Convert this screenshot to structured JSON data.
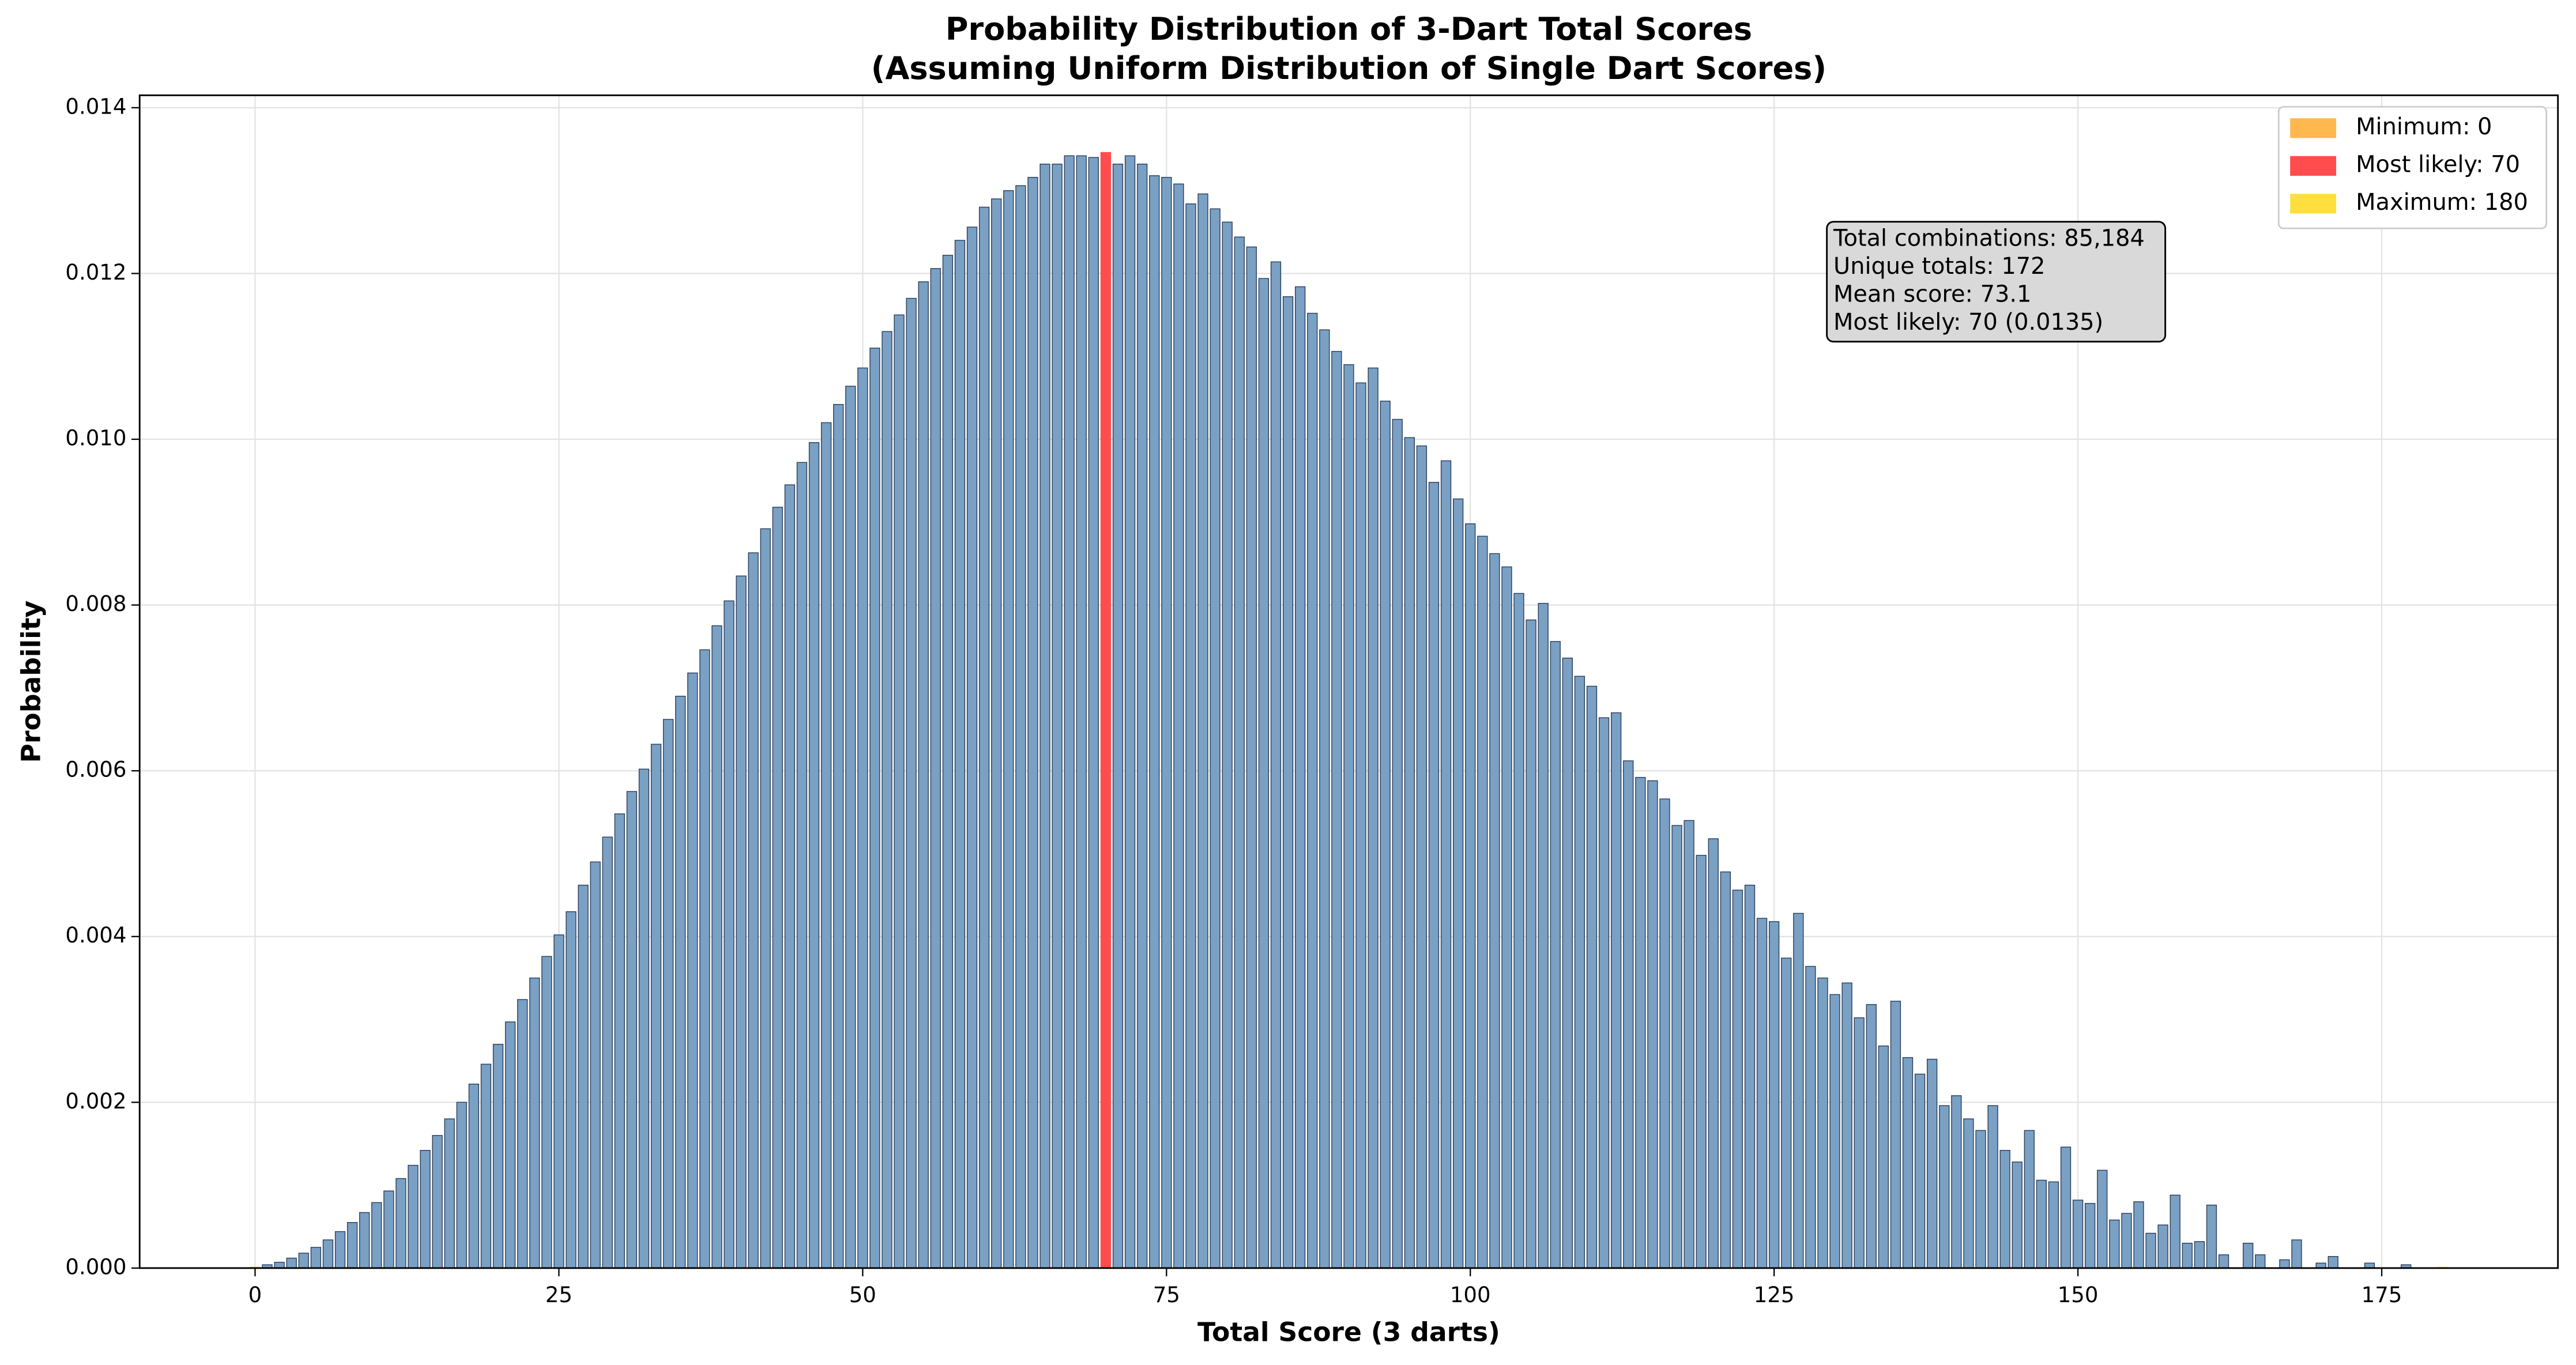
{
  "chart_data": {
    "type": "bar",
    "title": [
      "Probability Distribution of 3-Dart Total Scores",
      "(Assuming Uniform Distribution of Single Dart Scores)"
    ],
    "x_label": "Total Score (3 darts)",
    "y_label": "Probability",
    "color": "#7aa0c4",
    "edge_color": "#2a3f5a",
    "grid": true,
    "legend_position": "upper-right",
    "xlim": [
      -9.5,
      189.5
    ],
    "ylim": [
      0,
      0.01415
    ],
    "xticks": [
      0,
      25,
      50,
      75,
      100,
      125,
      150,
      175
    ],
    "yticks": [
      {
        "value": 0,
        "label": "0.000"
      },
      {
        "value": 0.002,
        "label": "0.002"
      },
      {
        "value": 0.004,
        "label": "0.004"
      },
      {
        "value": 0.006,
        "label": "0.006"
      },
      {
        "value": 0.008,
        "label": "0.008"
      },
      {
        "value": 0.01,
        "label": "0.010"
      },
      {
        "value": 0.012,
        "label": "0.012"
      },
      {
        "value": 0.014,
        "label": "0.014"
      }
    ],
    "highlights": [
      {
        "label": "Minimum: 0",
        "color": "#ffb84d",
        "x": 0
      },
      {
        "label": "Most likely: 70",
        "color": "#ff4d4d",
        "x": 70
      },
      {
        "label": "Maximum: 180",
        "color": "#ffdf3d",
        "x": 180
      }
    ],
    "annotation": [
      "Total combinations: 85,184",
      "Unique totals: 172",
      "Mean score: 73.1",
      "Most likely: 70 (0.0135)"
    ],
    "x": [
      0,
      1,
      2,
      3,
      4,
      5,
      6,
      7,
      8,
      9,
      10,
      11,
      12,
      13,
      14,
      15,
      16,
      17,
      18,
      19,
      20,
      21,
      22,
      23,
      24,
      25,
      26,
      27,
      28,
      29,
      30,
      31,
      32,
      33,
      34,
      35,
      36,
      37,
      38,
      39,
      40,
      41,
      42,
      43,
      44,
      45,
      46,
      47,
      48,
      49,
      50,
      51,
      52,
      53,
      54,
      55,
      56,
      57,
      58,
      59,
      60,
      61,
      62,
      63,
      64,
      65,
      66,
      67,
      68,
      69,
      70,
      71,
      72,
      73,
      74,
      75,
      76,
      77,
      78,
      79,
      80,
      81,
      82,
      83,
      84,
      85,
      86,
      87,
      88,
      89,
      90,
      91,
      92,
      93,
      94,
      95,
      96,
      97,
      98,
      99,
      100,
      101,
      102,
      103,
      104,
      105,
      106,
      107,
      108,
      109,
      110,
      111,
      112,
      113,
      114,
      115,
      116,
      117,
      118,
      119,
      120,
      121,
      122,
      123,
      124,
      125,
      126,
      127,
      128,
      129,
      130,
      131,
      132,
      133,
      134,
      135,
      136,
      137,
      138,
      139,
      140,
      141,
      142,
      143,
      144,
      145,
      146,
      147,
      148,
      149,
      150,
      151,
      152,
      153,
      154,
      155,
      156,
      157,
      158,
      159,
      160,
      161,
      162,
      163,
      164,
      165,
      166,
      167,
      168,
      169,
      170,
      171,
      172,
      173,
      174,
      175,
      176,
      177,
      178,
      179,
      180
    ],
    "values": [
      1e-05,
      4e-05,
      7e-05,
      0.00012,
      0.00018,
      0.00025,
      0.00034,
      0.00044,
      0.00055,
      0.00067,
      0.00079,
      0.00093,
      0.00108,
      0.00124,
      0.00142,
      0.0016,
      0.0018,
      0.002,
      0.00222,
      0.00246,
      0.0027,
      0.00297,
      0.00324,
      0.0035,
      0.00376,
      0.00402,
      0.0043,
      0.00462,
      0.0049,
      0.0052,
      0.00548,
      0.00575,
      0.00602,
      0.00632,
      0.00662,
      0.0069,
      0.00718,
      0.00746,
      0.00775,
      0.00805,
      0.00835,
      0.00863,
      0.00892,
      0.00918,
      0.00945,
      0.00972,
      0.00996,
      0.0102,
      0.01042,
      0.01064,
      0.01086,
      0.0111,
      0.0113,
      0.0115,
      0.0117,
      0.0119,
      0.01206,
      0.01222,
      0.0124,
      0.01256,
      0.0128,
      0.0129,
      0.013,
      0.01306,
      0.01316,
      0.01332,
      0.01332,
      0.01342,
      0.01342,
      0.0134,
      0.01346,
      0.01332,
      0.01342,
      0.01332,
      0.01318,
      0.01316,
      0.01308,
      0.01284,
      0.01296,
      0.01278,
      0.01262,
      0.01244,
      0.01232,
      0.01194,
      0.01214,
      0.01172,
      0.01184,
      0.01152,
      0.01132,
      0.01106,
      0.0109,
      0.01068,
      0.01086,
      0.01046,
      0.01024,
      0.01002,
      0.00992,
      0.00948,
      0.00974,
      0.00928,
      0.00898,
      0.00883,
      0.00862,
      0.00846,
      0.00814,
      0.00782,
      0.00802,
      0.00756,
      0.00736,
      0.00714,
      0.00702,
      0.00664,
      0.0067,
      0.00612,
      0.00592,
      0.00588,
      0.00566,
      0.00534,
      0.0054,
      0.00498,
      0.00518,
      0.00478,
      0.00456,
      0.00462,
      0.00422,
      0.00418,
      0.00374,
      0.00428,
      0.00364,
      0.0035,
      0.0033,
      0.00344,
      0.00302,
      0.00318,
      0.00268,
      0.00322,
      0.00254,
      0.00234,
      0.00252,
      0.00196,
      0.00208,
      0.0018,
      0.00166,
      0.00196,
      0.00142,
      0.00128,
      0.00166,
      0.00106,
      0.00104,
      0.00146,
      0.00082,
      0.00078,
      0.00118,
      0.00058,
      0.00066,
      0.0008,
      0.00042,
      0.00052,
      0.00088,
      0.0003,
      0.00032,
      0.00076,
      0.00016,
      0,
      0.0003,
      0.00016,
      0,
      0.0001,
      0.00034,
      0,
      6e-05,
      0.00014,
      0,
      0,
      6e-05,
      0,
      0,
      4e-05,
      0,
      0,
      1e-05
    ]
  }
}
